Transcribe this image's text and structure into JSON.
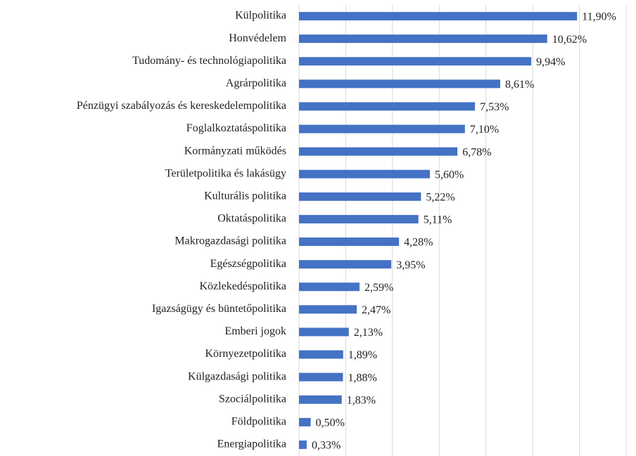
{
  "chart_data": {
    "type": "barh",
    "categories": [
      "Külpolitika",
      "Honvédelem",
      "Tudomány- és technológiapolitika",
      "Agrárpolitika",
      "Pénzügyi szabályozás és kereskedelempolitika",
      "Foglalkoztatáspolitika",
      "Kormányzati működés",
      "Területpolitika és lakásügy",
      "Kulturális politika",
      "Oktatáspolitika",
      "Makrogazdasági politika",
      "Egészségpolitika",
      "Közlekedéspolitika",
      "Igazságügy és büntetőpolitika",
      "Emberi jogok",
      "Környezetpolitika",
      "Külgazdasági politika",
      "Szociálpolitika",
      "Földpolitika",
      "Energiapolitika"
    ],
    "values": [
      11.9,
      10.62,
      9.94,
      8.61,
      7.53,
      7.1,
      6.78,
      5.6,
      5.22,
      5.11,
      4.28,
      3.95,
      2.59,
      2.47,
      2.13,
      1.89,
      1.88,
      1.83,
      0.5,
      0.33
    ],
    "value_labels": [
      "11,90%",
      "10,62%",
      "9,94%",
      "8,61%",
      "7,53%",
      "7,10%",
      "6,78%",
      "5,60%",
      "5,22%",
      "5,11%",
      "4,28%",
      "3,95%",
      "2,59%",
      "2,47%",
      "2,13%",
      "1,89%",
      "1,88%",
      "1,83%",
      "0,50%",
      "0,33%"
    ],
    "color": "#4472c4",
    "xlim": [
      0,
      14
    ],
    "xticks": [
      0,
      2,
      4,
      6,
      8,
      10,
      12,
      14
    ],
    "grid": true
  }
}
